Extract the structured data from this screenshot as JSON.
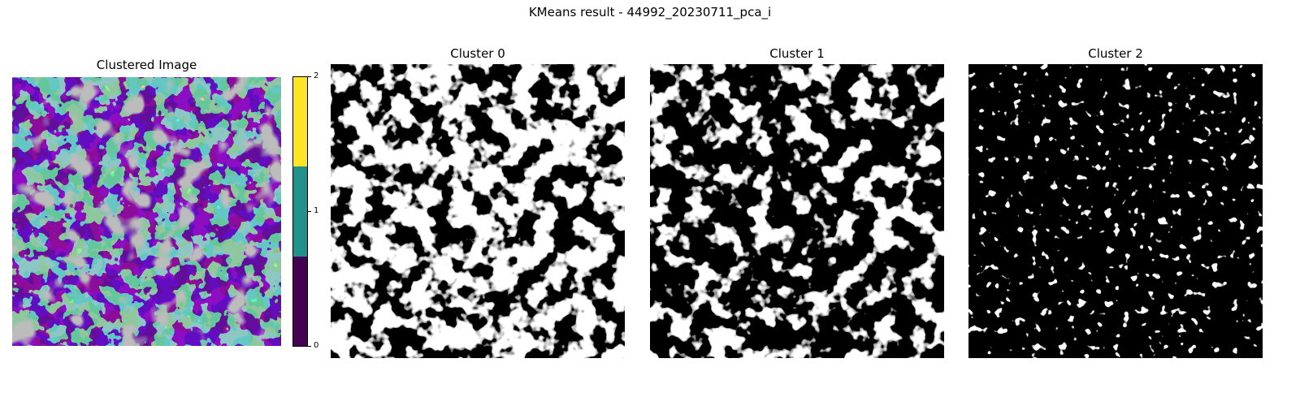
{
  "figure": {
    "suptitle": "KMeans result - 44992_20230711_pca_i"
  },
  "chart_data": [
    {
      "type": "heatmap",
      "title": "Clustered Image",
      "values": "categorical land-cover clusters 0, 1, 2 (plus grey no-data areas)",
      "colorbar": {
        "ticks": [
          0,
          1,
          2
        ],
        "tick_labels": [
          "0",
          "1",
          "2"
        ],
        "range": [
          0,
          2
        ],
        "segments": [
          {
            "cluster": 0,
            "color": "#440154"
          },
          {
            "cluster": 1,
            "color": "#21918c"
          },
          {
            "cluster": 2,
            "color": "#fde725"
          }
        ]
      },
      "colors": {
        "no_data": "#808080"
      }
    },
    {
      "type": "heatmap",
      "title": "Cluster 0",
      "colors": {
        "member": "#ffffff",
        "background": "#000000"
      }
    },
    {
      "type": "heatmap",
      "title": "Cluster 1",
      "colors": {
        "member": "#ffffff",
        "background": "#000000"
      }
    },
    {
      "type": "heatmap",
      "title": "Cluster 2",
      "colors": {
        "member": "#ffffff",
        "background": "#000000"
      }
    }
  ]
}
